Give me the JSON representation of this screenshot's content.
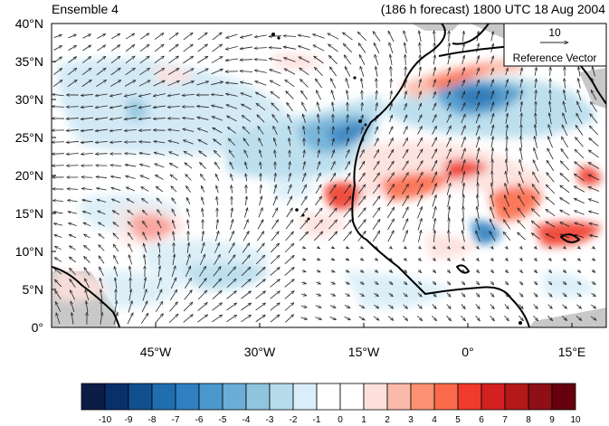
{
  "header": {
    "left_title": "Ensemble 4",
    "right_title": "(186 h forecast) 1800 UTC 18 Aug 2004"
  },
  "map": {
    "lat_labels": [
      "40°N",
      "35°N",
      "30°N",
      "25°N",
      "20°N",
      "15°N",
      "10°N",
      "5°N",
      "0°"
    ],
    "lon_labels": [
      "45°W",
      "30°W",
      "15°W",
      "0°",
      "15°E"
    ],
    "lon_range": [
      -60,
      20
    ],
    "lat_range": [
      0,
      40
    ]
  },
  "reference_vector": {
    "magnitude": "10",
    "label": "Reference Vector"
  },
  "colorbar": {
    "labels": [
      "-10",
      "-9",
      "-8",
      "-7",
      "-6",
      "-5",
      "-4",
      "-3",
      "-2",
      "-1",
      "0",
      "1",
      "2",
      "3",
      "4",
      "5",
      "6",
      "7",
      "8",
      "9",
      "10"
    ],
    "colors": [
      "#0b1d46",
      "#08306b",
      "#124f8f",
      "#1f6eb0",
      "#2f80c0",
      "#4a98cc",
      "#6aaed6",
      "#8fc5df",
      "#b6dcec",
      "#d9eef8",
      "#ffffff",
      "#ffffff",
      "#fde0dc",
      "#fbbaa9",
      "#fc9272",
      "#fb6a4a",
      "#ef3b2c",
      "#d32020",
      "#b41919",
      "#8e0f16",
      "#67000d"
    ]
  },
  "fields": {
    "positive_color": "#ef3b2c",
    "negative_color": "#2f80c0",
    "land_mask_color": "#c8c8c8"
  }
}
